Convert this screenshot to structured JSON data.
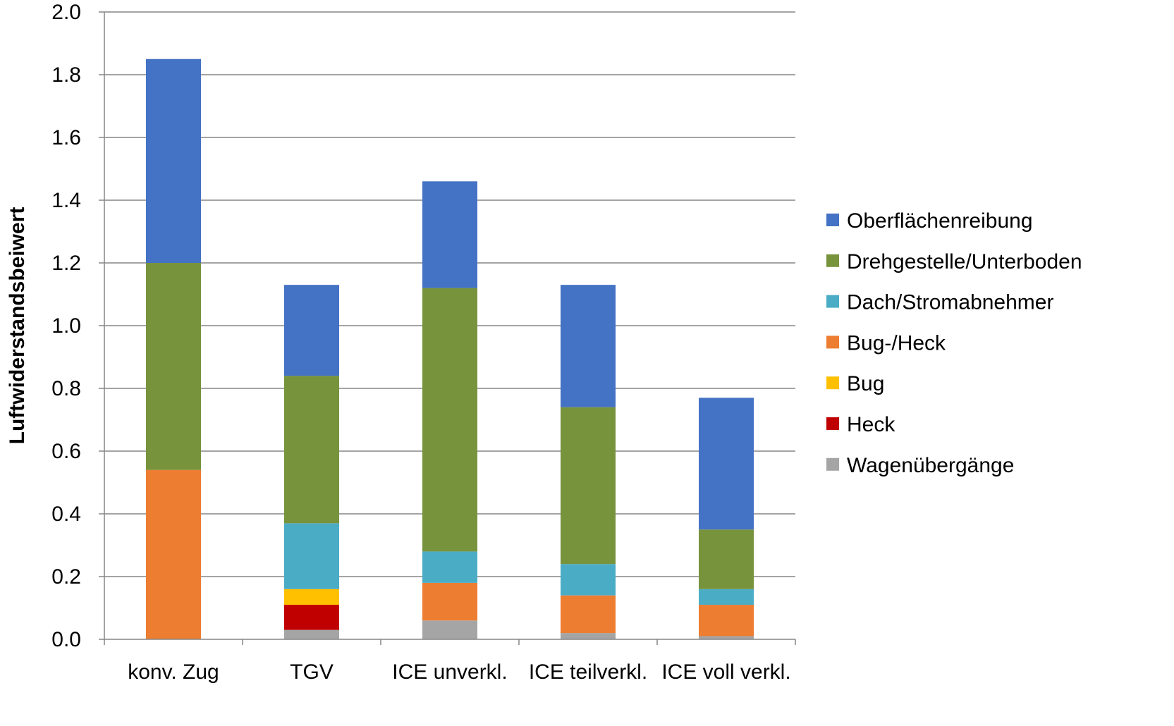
{
  "chart_data": {
    "type": "bar",
    "stacked": true,
    "title": "",
    "xlabel": "",
    "ylabel": "Luftwiderstandsbeiwert",
    "ylim": [
      0,
      2.0
    ],
    "yticks": [
      "0.0",
      "0.2",
      "0.4",
      "0.6",
      "0.8",
      "1.0",
      "1.2",
      "1.4",
      "1.6",
      "1.8",
      "2.0"
    ],
    "grid": true,
    "legend_position": "right",
    "categories": [
      "konv. Zug",
      "TGV",
      "ICE unverkl.",
      "ICE teilverkl.",
      "ICE voll verkl."
    ],
    "series": [
      {
        "name": "Wagenübergänge",
        "color": "#a5a5a5",
        "values": [
          0.0,
          0.03,
          0.06,
          0.02,
          0.01
        ]
      },
      {
        "name": "Heck",
        "color": "#c00000",
        "values": [
          0.0,
          0.08,
          0.0,
          0.0,
          0.0
        ]
      },
      {
        "name": "Bug",
        "color": "#ffc000",
        "values": [
          0.0,
          0.05,
          0.0,
          0.0,
          0.0
        ]
      },
      {
        "name": "Bug-/Heck",
        "color": "#ed7d31",
        "values": [
          0.54,
          0.0,
          0.12,
          0.12,
          0.1
        ]
      },
      {
        "name": "Dach/Stromabnehmer",
        "color": "#4bacc6",
        "values": [
          0.0,
          0.21,
          0.1,
          0.1,
          0.05
        ]
      },
      {
        "name": "Drehgestelle/Unterboden",
        "color": "#77933c",
        "values": [
          0.66,
          0.47,
          0.84,
          0.5,
          0.19
        ]
      },
      {
        "name": "Oberflächenreibung",
        "color": "#4472c4",
        "values": [
          0.65,
          0.29,
          0.34,
          0.39,
          0.42
        ]
      }
    ],
    "legend_order": [
      "Oberflächenreibung",
      "Drehgestelle/Unterboden",
      "Dach/Stromabnehmer",
      "Bug-/Heck",
      "Bug",
      "Heck",
      "Wagenübergänge"
    ]
  }
}
